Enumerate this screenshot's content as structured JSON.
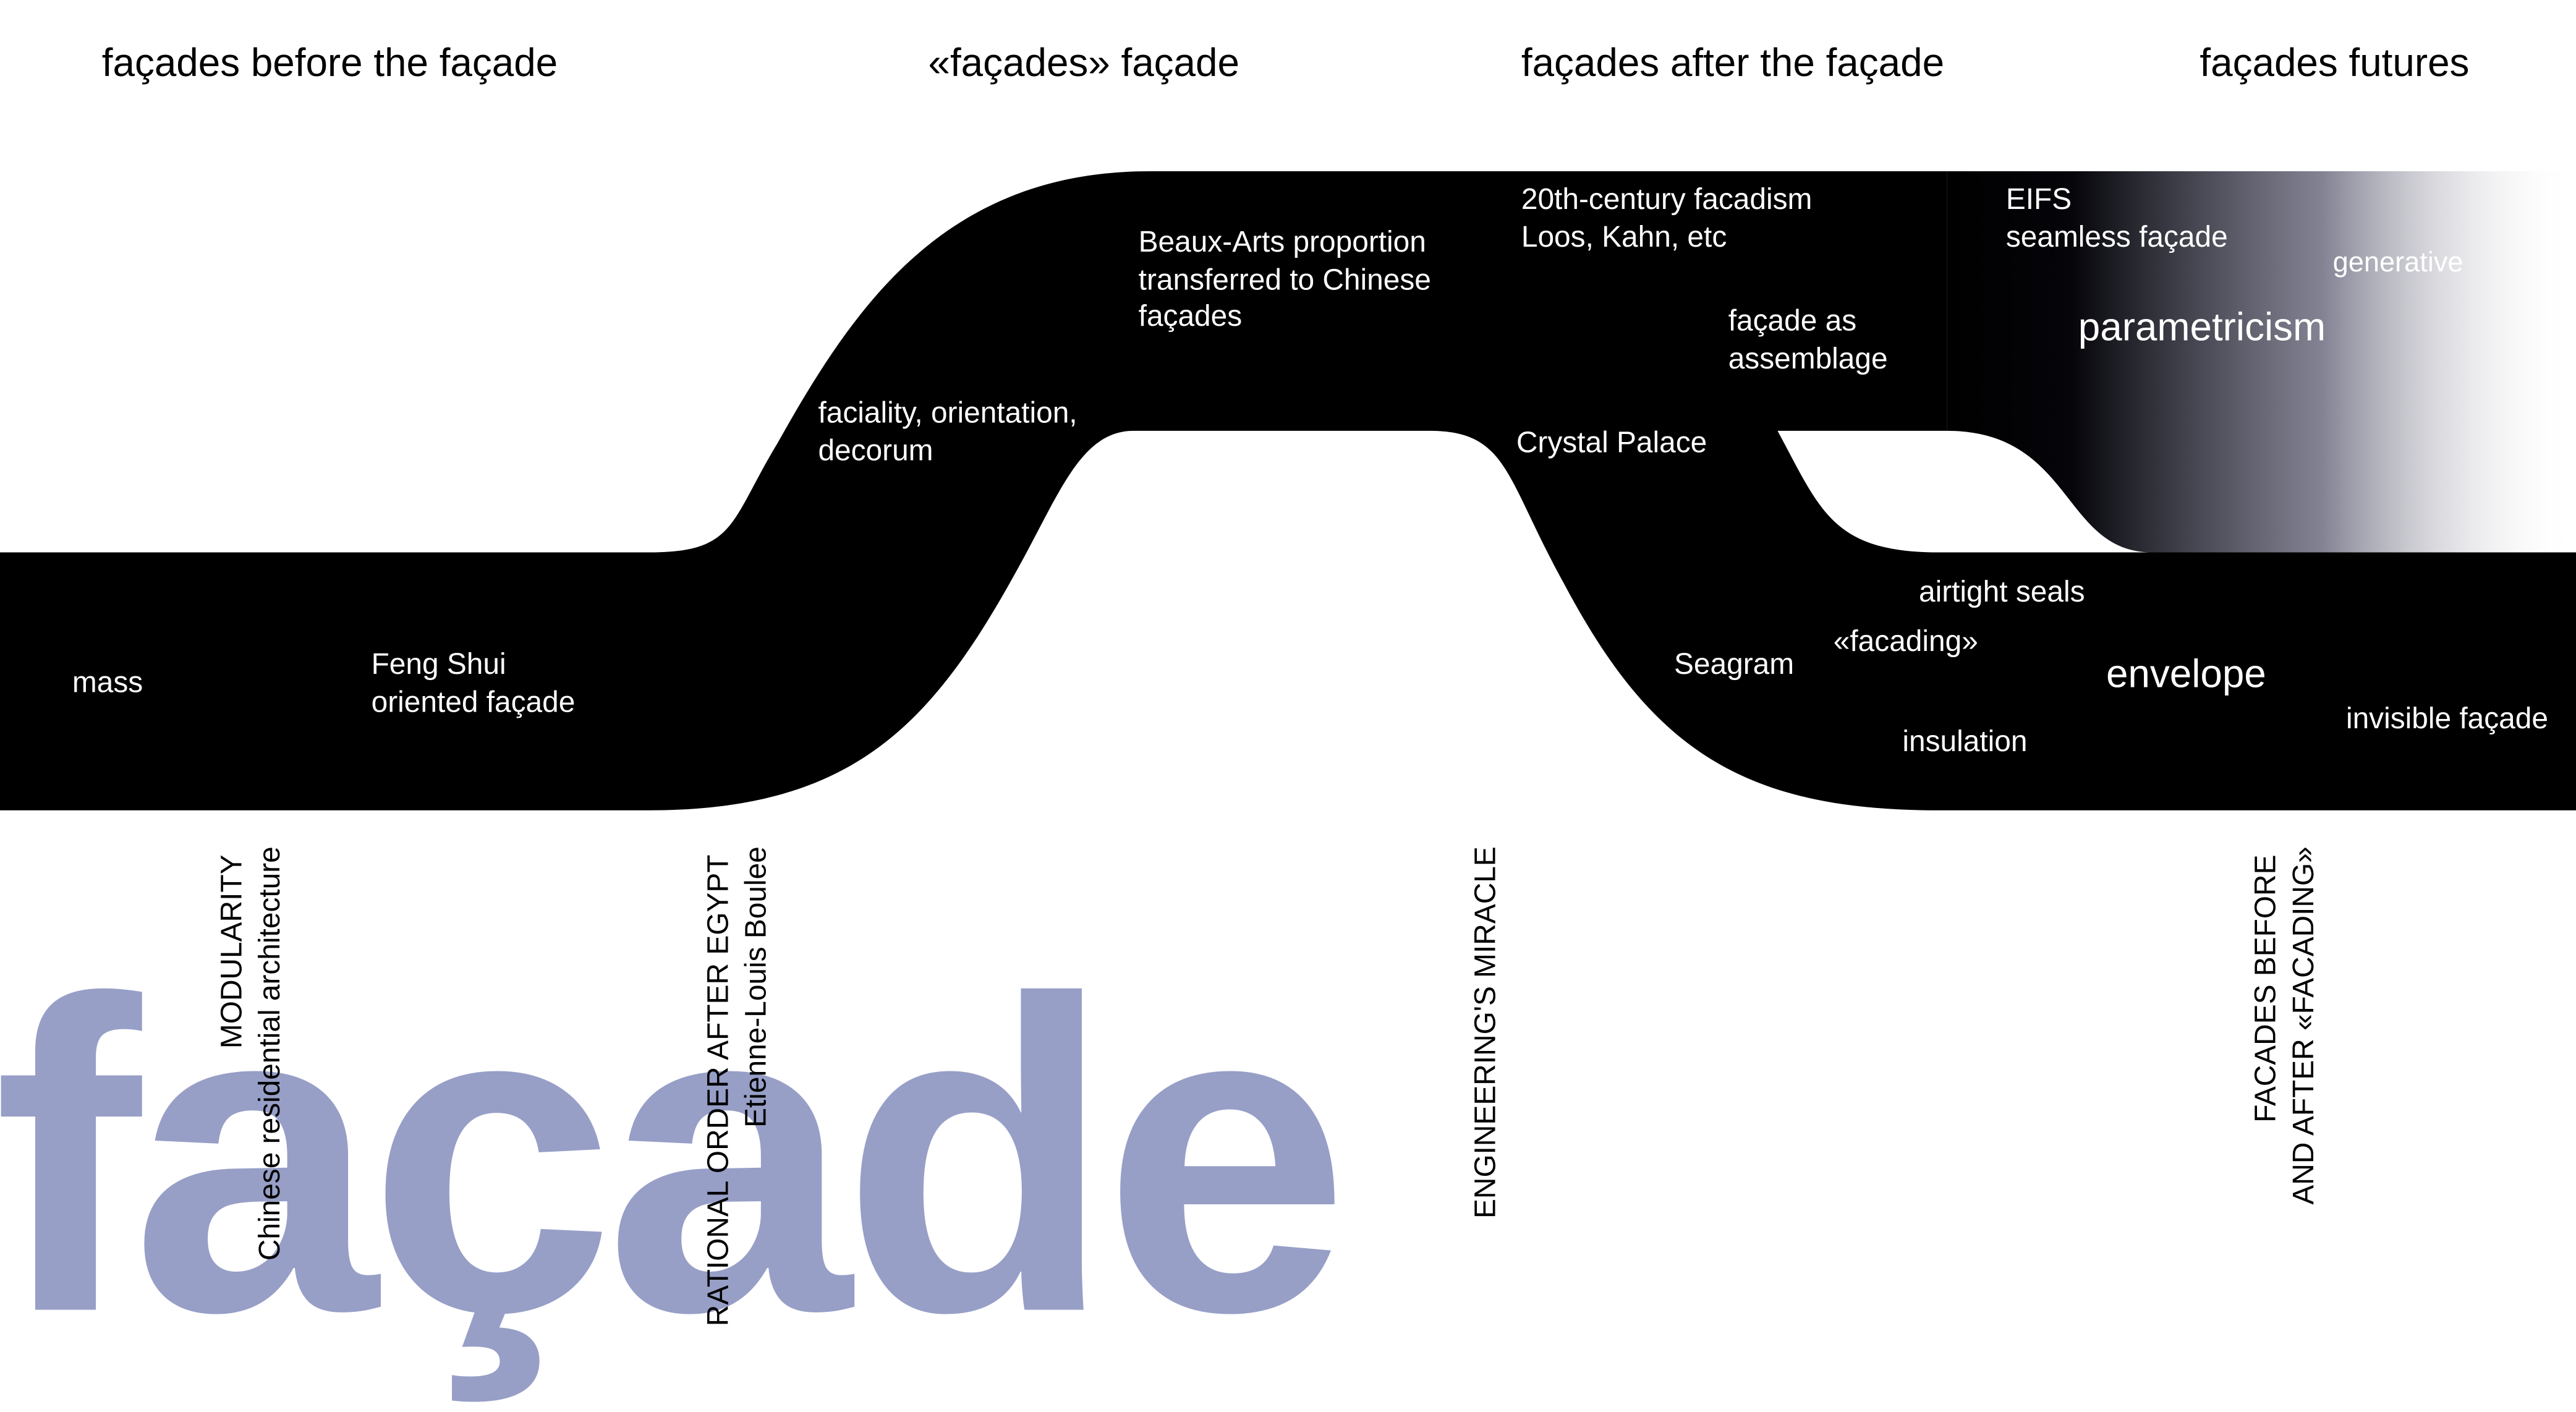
{
  "headings": [
    "façades before the façade",
    "«façades» façade",
    "façades after the façade",
    "façades futures"
  ],
  "band_labels": {
    "mass": "mass",
    "feng_shui": [
      "Feng Shui",
      "oriented façade"
    ],
    "faciality": [
      "faciality, orientation,",
      "decorum"
    ],
    "beaux_arts": [
      "Beaux-Arts proportion",
      "transferred to Chinese",
      "façades"
    ],
    "facadism": [
      "20th-century facadism",
      "Loos, Kahn, etc"
    ],
    "assemblage": [
      "façade as",
      "assemblage"
    ],
    "eifs": [
      "EIFS",
      "seamless façade"
    ],
    "generative": "generative",
    "parametricism": "parametricism",
    "crystal_palace": "Crystal Palace",
    "seagram": "Seagram",
    "airtight_seals": "airtight seals",
    "facading": "«facading»",
    "envelope": "envelope",
    "insulation": "insulation",
    "invisible_facade": "invisible façade"
  },
  "vertical_labels": {
    "modularity": [
      "MODULARITY",
      "Chinese residential architecture"
    ],
    "rational_order": [
      "RATIONAL ORDER AFTER EGYPT",
      "Etienne-Louis Boulee"
    ],
    "engineering": [
      "ENGINEERING'S MIRACLE"
    ],
    "facades_before_after": [
      "FACADES BEFORE",
      "AND AFTER «FACADING»"
    ]
  },
  "watermark": "façade",
  "colors": {
    "band": "#000000",
    "band_text": "#ffffff",
    "watermark": "#979fc7",
    "text": "#000000"
  }
}
